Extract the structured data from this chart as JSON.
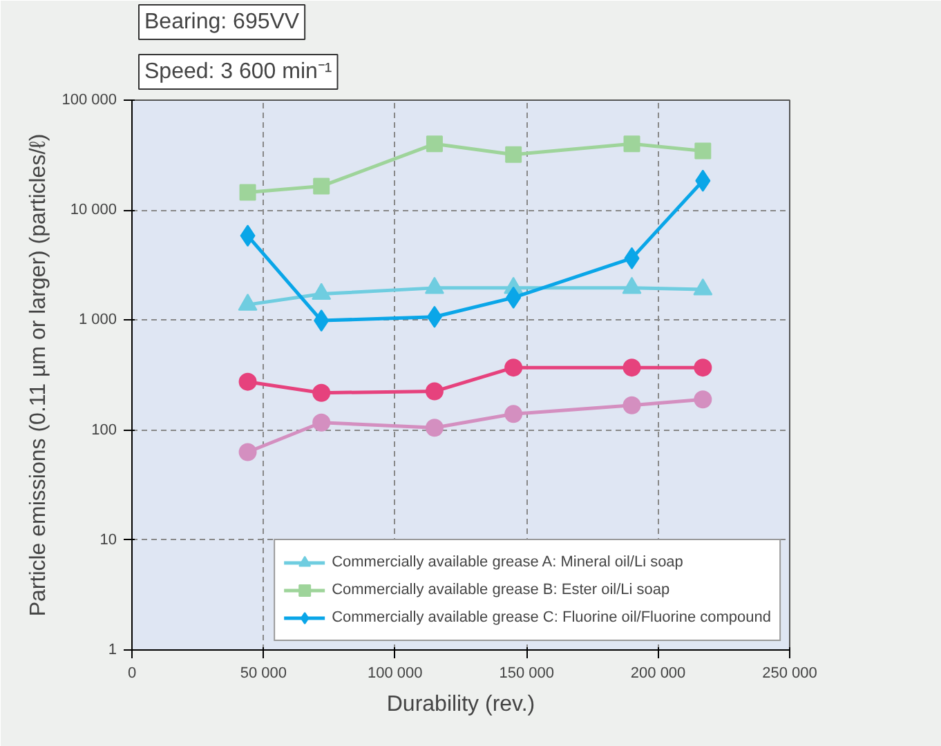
{
  "chart_data": {
    "type": "line",
    "xlabel": "Durability (rev.)",
    "ylabel": "Particle emissions (0.11 µm or larger) (particles/ℓ)",
    "annotations": [
      "Bearing: 695VV",
      "Speed: 3 600 min⁻¹"
    ],
    "log": "y",
    "grid": true,
    "line_style": "solid",
    "legend": "bottom right",
    "xlim": [
      0,
      250000
    ],
    "ylim": [
      1,
      100000
    ],
    "xticks": [
      0,
      {
        "value": 50000,
        "label": "50 000"
      },
      {
        "value": 100000,
        "label": "100 000"
      },
      {
        "value": 150000,
        "label": "150 000"
      },
      {
        "value": 200000,
        "label": "200 000"
      },
      {
        "value": 250000,
        "label": "250 000"
      }
    ],
    "yticks": [
      1,
      10,
      100,
      {
        "value": 1000,
        "label": "1 000"
      },
      {
        "value": 10000,
        "label": "10 000"
      },
      {
        "value": 100000,
        "label": "100 000"
      }
    ],
    "x": [
      44000,
      72000,
      115000,
      145000,
      190000,
      217000
    ],
    "series": [
      {
        "color": "#d48fc0",
        "marker": "circle",
        "values": [
          63,
          117,
          105,
          140,
          168,
          190
        ]
      },
      {
        "color": "#e6427d",
        "marker": "circle",
        "values": [
          275,
          218,
          225,
          370,
          370,
          370
        ]
      },
      {
        "name": "Commercially available grease A: Mineral oil/Li soap",
        "color": "#6fcde0",
        "marker": "triangle",
        "values": [
          1380,
          1730,
          1960,
          1960,
          1960,
          1900
        ]
      },
      {
        "name": "Commercially available grease B: Ester oil/Li soap",
        "color": "#9ed49a",
        "marker": "square",
        "values": [
          14500,
          16500,
          40000,
          32000,
          40000,
          34500
        ]
      },
      {
        "name": "Commercially available grease C: Fluorine oil/Fluorine compound",
        "color": "#0aa6e8",
        "marker": "diamond",
        "values": [
          5850,
          990,
          1070,
          1600,
          3650,
          18500
        ]
      }
    ]
  }
}
